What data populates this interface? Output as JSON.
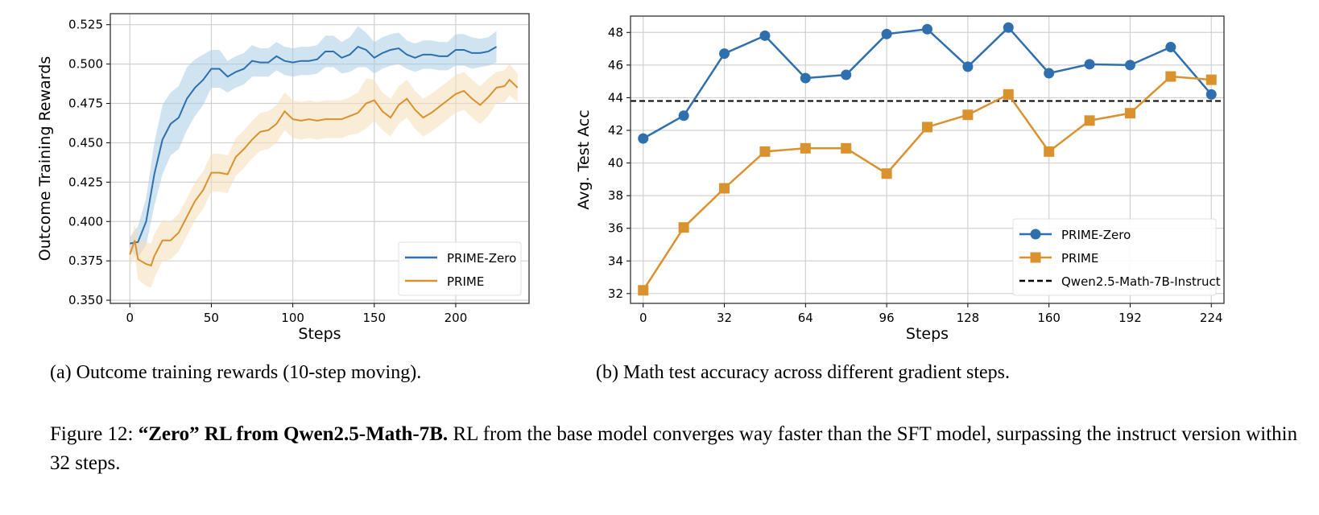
{
  "chart_data": [
    {
      "type": "line",
      "xlabel": "Steps",
      "ylabel": "Outcome Training Rewards",
      "xlim": [
        -12,
        245
      ],
      "ylim": [
        0.348,
        0.532
      ],
      "xticks": [
        0,
        50,
        100,
        150,
        200
      ],
      "yticks": [
        0.35,
        0.375,
        0.4,
        0.425,
        0.45,
        0.475,
        0.5,
        0.525
      ],
      "ytick_labels": [
        "0.350",
        "0.375",
        "0.400",
        "0.425",
        "0.450",
        "0.475",
        "0.500",
        "0.525"
      ],
      "grid": true,
      "legend_position": "lower-right",
      "series": [
        {
          "name": "PRIME-Zero",
          "color": "#2f6fad",
          "band_color": "#a9cce3",
          "x": [
            0,
            5,
            10,
            15,
            20,
            25,
            30,
            35,
            40,
            45,
            50,
            55,
            60,
            65,
            70,
            75,
            80,
            85,
            90,
            95,
            100,
            105,
            110,
            115,
            120,
            125,
            130,
            135,
            140,
            145,
            150,
            155,
            160,
            165,
            170,
            175,
            180,
            185,
            190,
            195,
            200,
            205,
            210,
            215,
            220,
            225
          ],
          "y": [
            0.386,
            0.387,
            0.4,
            0.43,
            0.452,
            0.462,
            0.466,
            0.478,
            0.485,
            0.49,
            0.497,
            0.497,
            0.492,
            0.495,
            0.497,
            0.502,
            0.501,
            0.501,
            0.505,
            0.502,
            0.501,
            0.502,
            0.502,
            0.503,
            0.508,
            0.508,
            0.504,
            0.506,
            0.511,
            0.509,
            0.504,
            0.507,
            0.509,
            0.51,
            0.506,
            0.504,
            0.506,
            0.506,
            0.505,
            0.505,
            0.509,
            0.509,
            0.507,
            0.507,
            0.508,
            0.511
          ],
          "band": [
            0.004,
            0.01,
            0.015,
            0.02,
            0.022,
            0.02,
            0.02,
            0.02,
            0.018,
            0.016,
            0.012,
            0.012,
            0.01,
            0.01,
            0.01,
            0.01,
            0.009,
            0.009,
            0.009,
            0.009,
            0.009,
            0.009,
            0.009,
            0.009,
            0.01,
            0.01,
            0.01,
            0.011,
            0.013,
            0.011,
            0.01,
            0.01,
            0.01,
            0.01,
            0.009,
            0.009,
            0.009,
            0.009,
            0.009,
            0.009,
            0.01,
            0.01,
            0.01,
            0.009,
            0.009,
            0.01
          ]
        },
        {
          "name": "PRIME",
          "color": "#d9922e",
          "band_color": "#f5dfb8",
          "x": [
            0,
            3,
            5,
            10,
            13,
            15,
            20,
            25,
            30,
            35,
            40,
            45,
            50,
            55,
            60,
            65,
            70,
            75,
            80,
            85,
            90,
            95,
            100,
            105,
            110,
            115,
            120,
            125,
            130,
            135,
            140,
            145,
            150,
            155,
            160,
            165,
            170,
            175,
            180,
            185,
            190,
            195,
            200,
            205,
            210,
            215,
            220,
            225,
            230,
            233,
            238
          ],
          "y": [
            0.379,
            0.388,
            0.376,
            0.373,
            0.372,
            0.378,
            0.388,
            0.388,
            0.393,
            0.403,
            0.413,
            0.42,
            0.431,
            0.431,
            0.43,
            0.441,
            0.446,
            0.452,
            0.457,
            0.458,
            0.462,
            0.47,
            0.465,
            0.464,
            0.465,
            0.464,
            0.465,
            0.465,
            0.465,
            0.467,
            0.469,
            0.475,
            0.477,
            0.47,
            0.466,
            0.474,
            0.478,
            0.471,
            0.466,
            0.469,
            0.473,
            0.477,
            0.481,
            0.483,
            0.478,
            0.474,
            0.479,
            0.485,
            0.486,
            0.49,
            0.485
          ],
          "band": [
            0.008,
            0.01,
            0.013,
            0.014,
            0.014,
            0.014,
            0.013,
            0.012,
            0.012,
            0.012,
            0.012,
            0.012,
            0.012,
            0.012,
            0.012,
            0.012,
            0.012,
            0.012,
            0.012,
            0.012,
            0.012,
            0.012,
            0.012,
            0.012,
            0.012,
            0.012,
            0.012,
            0.012,
            0.012,
            0.012,
            0.013,
            0.016,
            0.013,
            0.012,
            0.012,
            0.012,
            0.012,
            0.012,
            0.012,
            0.012,
            0.012,
            0.012,
            0.012,
            0.012,
            0.012,
            0.012,
            0.012,
            0.01,
            0.01,
            0.01,
            0.009
          ]
        }
      ]
    },
    {
      "type": "line",
      "xlabel": "Steps",
      "ylabel": "Avg. Test Acc",
      "xlim": [
        -5,
        229
      ],
      "ylim": [
        31.4,
        49.0
      ],
      "xticks": [
        0,
        32,
        64,
        96,
        128,
        160,
        192,
        224
      ],
      "yticks": [
        32,
        34,
        36,
        38,
        40,
        42,
        44,
        46,
        48
      ],
      "grid": true,
      "legend_position": "lower-right",
      "series": [
        {
          "name": "PRIME-Zero",
          "color": "#2f6fad",
          "marker": "circle",
          "x": [
            0,
            16,
            32,
            48,
            64,
            80,
            96,
            112,
            128,
            144,
            160,
            176,
            192,
            208,
            224
          ],
          "y": [
            41.5,
            42.9,
            46.7,
            47.8,
            45.2,
            45.4,
            47.9,
            48.2,
            45.9,
            48.3,
            45.5,
            46.05,
            46.0,
            47.1,
            44.2
          ]
        },
        {
          "name": "PRIME",
          "color": "#d9922e",
          "marker": "square",
          "x": [
            0,
            16,
            32,
            48,
            64,
            80,
            96,
            112,
            128,
            144,
            160,
            176,
            192,
            208,
            224
          ],
          "y": [
            32.2,
            36.05,
            38.45,
            40.7,
            40.9,
            40.9,
            39.35,
            42.2,
            42.95,
            44.2,
            40.7,
            42.6,
            43.05,
            45.3,
            45.1
          ]
        }
      ],
      "reference_line": {
        "name": "Qwen2.5-Math-7B-Instruct",
        "y": 43.8,
        "color": "#000000",
        "style": "dashed"
      }
    }
  ],
  "captions": {
    "a": "(a) Outcome training rewards (10-step moving).",
    "b": "(b) Math test accuracy across different gradient steps.",
    "figure_label": "Figure 12:",
    "figure_bold": "“Zero” RL from Qwen2.5-Math-7B.",
    "figure_text": "RL from the base model converges way faster than the SFT model, surpassing the instruct version within 32 steps."
  }
}
